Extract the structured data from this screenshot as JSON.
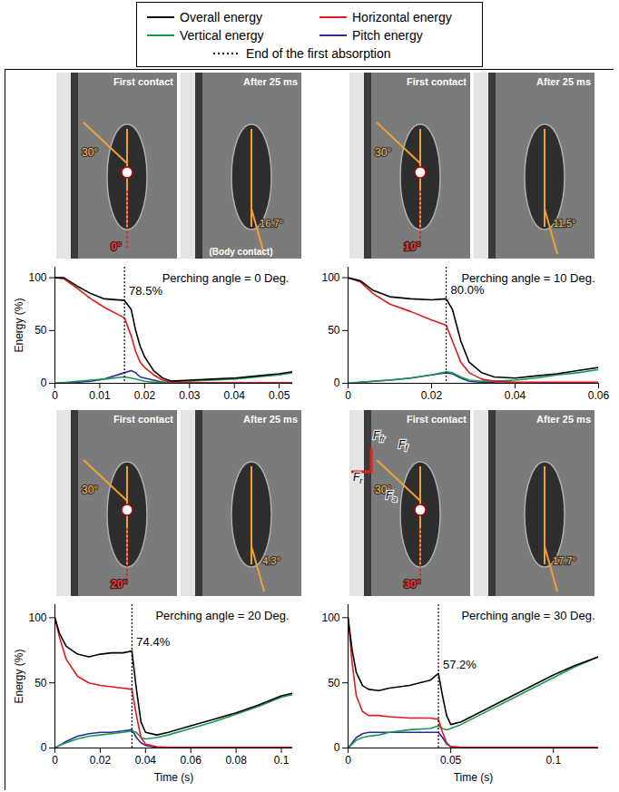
{
  "legend": {
    "entries": [
      {
        "name": "Overall energy",
        "color": "#000000",
        "line_style": "solid"
      },
      {
        "name": "Horizontal energy",
        "color": "#e31a1c",
        "line_style": "solid"
      },
      {
        "name": "Vertical energy",
        "color": "#1a9850",
        "line_style": "solid"
      },
      {
        "name": "Pitch energy",
        "color": "#2b2b9b",
        "line_style": "solid"
      },
      {
        "name": "End of the first absorption",
        "color": "#000000",
        "line_style": "dotted"
      }
    ]
  },
  "chart_data": [
    {
      "type": "line",
      "title": "Perching angle = 0 Deg.",
      "ylabel": "Energy (%)",
      "xlim": [
        0,
        0.053
      ],
      "xticks": [
        0,
        0.01,
        0.02,
        0.03,
        0.04,
        0.05
      ],
      "ylim": [
        0,
        110
      ],
      "yticks": [
        0,
        50,
        100
      ],
      "absorption": {
        "x": 0.0155,
        "value": 78.5,
        "label": "78.5%"
      },
      "photos": [
        {
          "caption": "First contact",
          "leg_angle": "30°",
          "perching_angle": "0°"
        },
        {
          "caption": "After 25 ms",
          "angle": "16.7°",
          "note": "(Body contact)"
        }
      ],
      "x": [
        0,
        0.002,
        0.005,
        0.008,
        0.011,
        0.0155,
        0.017,
        0.018,
        0.019,
        0.02,
        0.022,
        0.024,
        0.026,
        0.03,
        0.035,
        0.04,
        0.045,
        0.05,
        0.053
      ],
      "series": [
        {
          "name": "Overall energy",
          "color": "#000000",
          "values": [
            100,
            100,
            92,
            85,
            80,
            78.5,
            70,
            50,
            35,
            25,
            12,
            5,
            2,
            3,
            4,
            5,
            7,
            9,
            11
          ]
        },
        {
          "name": "Horizontal energy",
          "color": "#e31a1c",
          "values": [
            100,
            99,
            90,
            80,
            72,
            62,
            45,
            30,
            20,
            15,
            8,
            3,
            1,
            0.5,
            0.5,
            0.5,
            0.5,
            0.5,
            0.5
          ]
        },
        {
          "name": "Vertical energy",
          "color": "#1a9850",
          "values": [
            0,
            0.5,
            2,
            3,
            4,
            6,
            5,
            4,
            3,
            2,
            1,
            1,
            1,
            2,
            3,
            4,
            6,
            8,
            10
          ]
        },
        {
          "name": "Pitch energy",
          "color": "#2b2b9b",
          "values": [
            0,
            0.5,
            1,
            2,
            4,
            10,
            12,
            10,
            6,
            5,
            3,
            1,
            0.5,
            0.2,
            0.2,
            0.2,
            0.2,
            0.2,
            0.2
          ]
        }
      ]
    },
    {
      "type": "line",
      "title": "Perching angle = 10 Deg.",
      "xlim": [
        0,
        0.06
      ],
      "xticks": [
        0,
        0.02,
        0.04,
        0.06
      ],
      "ylim": [
        0,
        110
      ],
      "yticks": [
        0,
        50,
        100
      ],
      "absorption": {
        "x": 0.0235,
        "value": 80,
        "label": "80.0%"
      },
      "photos": [
        {
          "caption": "First contact",
          "leg_angle": "30°",
          "perching_angle": "10°"
        },
        {
          "caption": "After 25 ms",
          "angle": "11.5°"
        }
      ],
      "x": [
        0,
        0.003,
        0.006,
        0.01,
        0.015,
        0.02,
        0.0235,
        0.025,
        0.027,
        0.029,
        0.032,
        0.035,
        0.04,
        0.045,
        0.05,
        0.055,
        0.06
      ],
      "series": [
        {
          "name": "Overall energy",
          "color": "#000000",
          "values": [
            100,
            97,
            88,
            82,
            80,
            79,
            80,
            70,
            40,
            20,
            10,
            6,
            5,
            7,
            9,
            12,
            15
          ]
        },
        {
          "name": "Horizontal energy",
          "color": "#e31a1c",
          "values": [
            100,
            96,
            85,
            75,
            68,
            60,
            55,
            40,
            20,
            10,
            4,
            2,
            1,
            1,
            1,
            1,
            1
          ]
        },
        {
          "name": "Vertical energy",
          "color": "#1a9850",
          "values": [
            0,
            1,
            2,
            3,
            5,
            8,
            11,
            10,
            6,
            3,
            2,
            2,
            3,
            5,
            8,
            10,
            13
          ]
        },
        {
          "name": "Pitch energy",
          "color": "#2b2b9b",
          "values": [
            0,
            1,
            2,
            3,
            5,
            8,
            10,
            9,
            5,
            2,
            1,
            0.5,
            0.3,
            0.3,
            0.3,
            0.3,
            0.3
          ]
        }
      ]
    },
    {
      "type": "line",
      "title": "Perching angle = 20 Deg.",
      "xlabel": "Time (s)",
      "ylabel": "Energy (%)",
      "xlim": [
        0,
        0.105
      ],
      "xticks": [
        0,
        0.02,
        0.04,
        0.06,
        0.08,
        0.1
      ],
      "ylim": [
        0,
        110
      ],
      "yticks": [
        0,
        50,
        100
      ],
      "absorption": {
        "x": 0.034,
        "value": 74.4,
        "label": "74.4%"
      },
      "photos": [
        {
          "caption": "First contact",
          "leg_angle": "30°",
          "perching_angle": "20°"
        },
        {
          "caption": "After 25 ms",
          "angle": "4.3°"
        }
      ],
      "x": [
        0,
        0.002,
        0.005,
        0.01,
        0.015,
        0.02,
        0.025,
        0.03,
        0.034,
        0.036,
        0.038,
        0.04,
        0.045,
        0.05,
        0.06,
        0.07,
        0.08,
        0.09,
        0.1,
        0.105
      ],
      "series": [
        {
          "name": "Overall energy",
          "color": "#000000",
          "values": [
            100,
            88,
            78,
            72,
            70,
            72,
            73,
            73,
            74.4,
            45,
            20,
            12,
            10,
            12,
            17,
            22,
            27,
            33,
            40,
            42
          ]
        },
        {
          "name": "Horizontal energy",
          "color": "#e31a1c",
          "values": [
            100,
            85,
            68,
            55,
            50,
            48,
            47,
            46,
            45,
            25,
            8,
            3,
            1,
            0.5,
            0.5,
            0.5,
            0.5,
            0.5,
            0.5,
            0.5
          ]
        },
        {
          "name": "Vertical energy",
          "color": "#1a9850",
          "values": [
            0,
            2,
            4,
            7,
            9,
            10,
            11,
            12,
            13,
            12,
            8,
            7,
            8,
            10,
            15,
            20,
            26,
            32,
            39,
            41
          ]
        },
        {
          "name": "Pitch energy",
          "color": "#2b2b9b",
          "values": [
            0,
            2,
            5,
            9,
            11,
            12,
            12,
            13,
            14,
            8,
            4,
            2,
            0.5,
            0.3,
            0.3,
            0.3,
            0.3,
            0.3,
            0.3,
            0.3
          ]
        }
      ]
    },
    {
      "type": "line",
      "title": "Perching angle = 30 Deg.",
      "xlabel": "Time (s)",
      "xlim": [
        0,
        0.122
      ],
      "xticks": [
        0,
        0.05,
        0.1
      ],
      "ylim": [
        0,
        110
      ],
      "yticks": [
        0,
        50,
        100
      ],
      "absorption": {
        "x": 0.044,
        "value": 57.2,
        "label": "57.2%"
      },
      "photos": [
        {
          "caption": "First contact",
          "leg_angle": "30°",
          "perching_angle": "30°",
          "forces": [
            {
              "main": "F",
              "sub": "fr"
            },
            {
              "main": "F",
              "sub": "f"
            },
            {
              "main": "F",
              "sub": "r"
            },
            {
              "main": "F",
              "sub": "a"
            }
          ]
        },
        {
          "caption": "After 25 ms",
          "angle": "17.7°"
        }
      ],
      "x": [
        0,
        0.002,
        0.004,
        0.007,
        0.01,
        0.015,
        0.02,
        0.03,
        0.04,
        0.044,
        0.046,
        0.048,
        0.05,
        0.055,
        0.06,
        0.07,
        0.08,
        0.09,
        0.1,
        0.11,
        0.122
      ],
      "series": [
        {
          "name": "Overall energy",
          "color": "#000000",
          "values": [
            100,
            75,
            58,
            48,
            45,
            44,
            46,
            48,
            52,
            57.2,
            40,
            25,
            18,
            20,
            24,
            32,
            40,
            48,
            56,
            63,
            70
          ]
        },
        {
          "name": "Horizontal energy",
          "color": "#e31a1c",
          "values": [
            100,
            65,
            40,
            28,
            25,
            25,
            24,
            23,
            23,
            22,
            12,
            4,
            1,
            0.5,
            0.5,
            0.5,
            0.5,
            0.5,
            0.5,
            0.5,
            0.5
          ]
        },
        {
          "name": "Vertical energy",
          "color": "#1a9850",
          "values": [
            0,
            3,
            6,
            8,
            9,
            10,
            12,
            14,
            15,
            17,
            15,
            14,
            15,
            18,
            22,
            30,
            38,
            46,
            54,
            62,
            70
          ]
        },
        {
          "name": "Pitch energy",
          "color": "#2b2b9b",
          "values": [
            0,
            4,
            8,
            11,
            12,
            12,
            12,
            12,
            12,
            12,
            8,
            3,
            1,
            0.5,
            0.5,
            0.5,
            0.5,
            0.5,
            0.5,
            0.5,
            0.5
          ]
        }
      ]
    }
  ]
}
